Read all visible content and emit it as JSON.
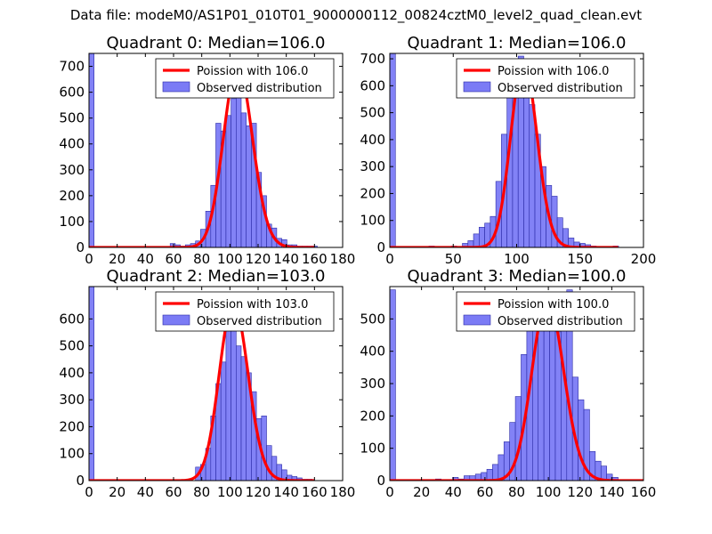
{
  "figure": {
    "suptitle": "Data file: modeM0/AS1P01_010T01_9000000112_00824cztM0_level2_quad_clean.evt",
    "colors": {
      "bar_fill": "#7b7bf5",
      "bar_edge": "#2a2aa6",
      "poisson_line": "#ff0000"
    }
  },
  "chart_data": [
    {
      "type": "bar",
      "title": "Quadrant 0: Median=106.0",
      "legend": [
        "Poission with 106.0",
        "Observed distribution"
      ],
      "legend_position": "top-right",
      "xlim": [
        0,
        180
      ],
      "ylim": [
        0,
        750
      ],
      "xticks": [
        0,
        20,
        40,
        60,
        80,
        100,
        120,
        140,
        160,
        180
      ],
      "yticks": [
        0,
        100,
        200,
        300,
        400,
        500,
        600,
        700
      ],
      "bin_width": 3.6,
      "bin_starts": [
        0,
        57.6,
        61.2,
        64.8,
        68.4,
        72,
        75.6,
        79.2,
        82.8,
        86.4,
        90,
        93.6,
        97.2,
        100.8,
        104.4,
        108,
        111.6,
        115.2,
        118.8,
        122.4,
        126,
        129.6,
        133.2,
        136.8,
        140.4,
        144,
        147.6,
        151.2,
        154.8,
        158.4
      ],
      "counts": [
        750,
        15,
        10,
        5,
        10,
        15,
        25,
        70,
        140,
        240,
        480,
        450,
        510,
        575,
        610,
        520,
        470,
        480,
        290,
        200,
        90,
        75,
        35,
        30,
        10,
        10,
        5,
        5,
        5,
        5
      ],
      "poisson": {
        "mean": 106,
        "scale": 700,
        "x_range": [
          0,
          160
        ]
      }
    },
    {
      "type": "bar",
      "title": "Quadrant 1: Median=106.0",
      "legend": [
        "Poission with 106.0",
        "Observed distribution"
      ],
      "legend_position": "top-right",
      "xlim": [
        0,
        200
      ],
      "ylim": [
        0,
        720
      ],
      "xticks": [
        0,
        50,
        100,
        150,
        200
      ],
      "yticks": [
        0,
        100,
        200,
        300,
        400,
        500,
        600,
        700
      ],
      "bin_width": 4.4,
      "bin_starts": [
        0,
        30.8,
        48.4,
        57.2,
        61.6,
        66,
        70.4,
        74.8,
        79.2,
        83.6,
        88,
        92.4,
        96.8,
        101.2,
        105.6,
        110,
        114.4,
        118.8,
        123.2,
        127.6,
        132,
        136.4,
        140.8,
        145.2,
        149.6,
        154,
        158.4,
        176
      ],
      "counts": [
        720,
        5,
        5,
        15,
        25,
        50,
        75,
        90,
        115,
        245,
        420,
        560,
        590,
        710,
        610,
        530,
        420,
        300,
        230,
        190,
        110,
        70,
        35,
        20,
        15,
        10,
        5,
        5
      ],
      "poisson": {
        "mean": 106,
        "scale": 690,
        "x_range": [
          0,
          180
        ]
      }
    },
    {
      "type": "bar",
      "title": "Quadrant 2: Median=103.0",
      "legend": [
        "Poission with 103.0",
        "Observed distribution"
      ],
      "legend_position": "top-right",
      "xlim": [
        0,
        180
      ],
      "ylim": [
        0,
        720
      ],
      "xticks": [
        0,
        20,
        40,
        60,
        80,
        100,
        120,
        140,
        160,
        180
      ],
      "yticks": [
        0,
        100,
        200,
        300,
        400,
        500,
        600
      ],
      "bin_width": 3.6,
      "bin_starts": [
        0,
        75.6,
        79.2,
        82.8,
        86.4,
        90,
        93.6,
        97.2,
        100.8,
        104.4,
        108,
        111.6,
        115.2,
        118.8,
        122.4,
        126,
        129.6,
        133.2,
        136.8,
        140.4,
        144,
        147.6,
        151.2,
        154.8
      ],
      "counts": [
        720,
        50,
        60,
        120,
        240,
        360,
        440,
        600,
        660,
        500,
        460,
        400,
        330,
        230,
        240,
        130,
        90,
        60,
        40,
        20,
        15,
        10,
        5,
        5
      ],
      "poisson": {
        "mean": 103,
        "scale": 660,
        "x_range": [
          0,
          160
        ]
      }
    },
    {
      "type": "bar",
      "title": "Quadrant 3: Median=100.0",
      "legend": [
        "Poission with 100.0",
        "Observed distribution"
      ],
      "legend_position": "top-right",
      "xlim": [
        0,
        160
      ],
      "ylim": [
        0,
        600
      ],
      "xticks": [
        0,
        20,
        40,
        60,
        80,
        100,
        120,
        140,
        160
      ],
      "yticks": [
        0,
        100,
        200,
        300,
        400,
        500
      ],
      "bin_width": 3.6,
      "bin_starts": [
        0,
        28.8,
        39.6,
        43.2,
        46.8,
        50.4,
        54,
        57.6,
        61.2,
        64.8,
        68.4,
        72,
        75.6,
        79.2,
        82.8,
        86.4,
        90,
        93.6,
        97.2,
        100.8,
        104.4,
        108,
        111.6,
        115.2,
        118.8,
        122.4,
        126,
        129.6,
        133.2,
        136.8,
        140.4
      ],
      "counts": [
        590,
        5,
        10,
        5,
        15,
        15,
        20,
        25,
        35,
        50,
        80,
        120,
        180,
        260,
        390,
        520,
        560,
        580,
        560,
        510,
        460,
        560,
        590,
        320,
        250,
        220,
        90,
        60,
        45,
        20,
        10
      ],
      "poisson": {
        "mean": 100,
        "scale": 560,
        "x_range": [
          0,
          160
        ]
      }
    }
  ]
}
